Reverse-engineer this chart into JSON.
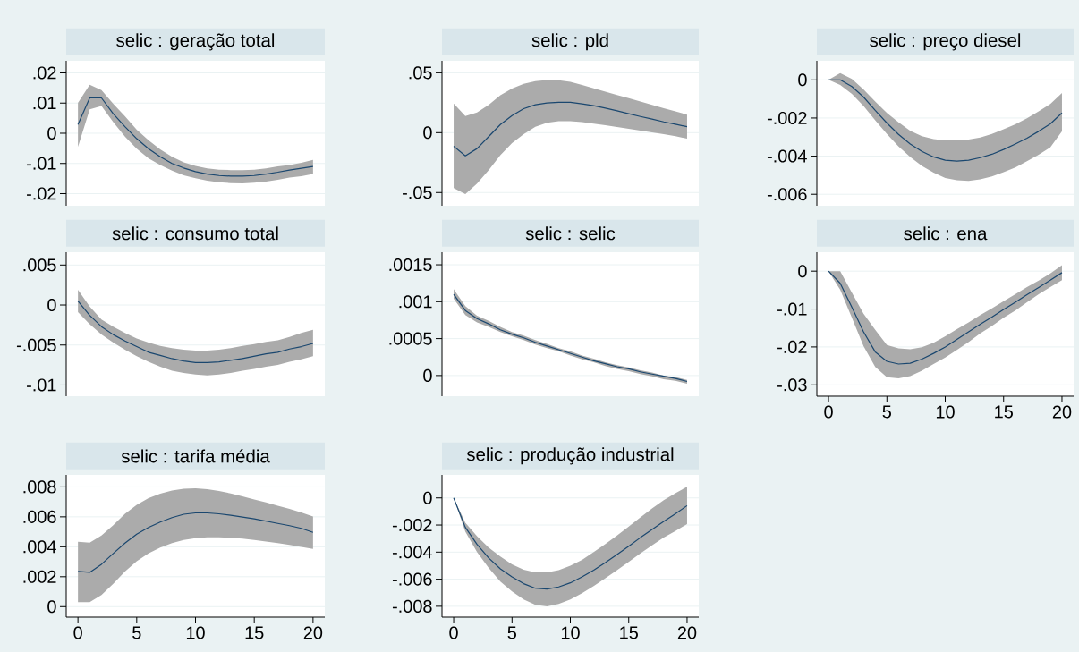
{
  "chart_data": [
    {
      "type": "line",
      "title": "selic : geração total",
      "x": [
        0,
        1,
        2,
        3,
        4,
        5,
        6,
        7,
        8,
        9,
        10,
        11,
        12,
        13,
        14,
        15,
        16,
        17,
        18,
        19,
        20
      ],
      "xlim": [
        -1,
        21
      ],
      "ylim": [
        -0.024,
        0.024
      ],
      "yticks": [
        {
          "value": -0.02,
          "label": "-.02"
        },
        {
          "value": -0.01,
          "label": "-.01"
        },
        0,
        {
          "value": 0.01,
          "label": ".01"
        },
        {
          "value": 0.02,
          "label": ".02"
        }
      ],
      "grid": "y",
      "tick_labels": "y",
      "series": [
        {
          "color": "#1a476f",
          "values": [
            0.0029,
            0.0117,
            0.0117,
            0.0065,
            0.0022,
            -0.0018,
            -0.0051,
            -0.0078,
            -0.01,
            -0.0115,
            -0.0127,
            -0.0135,
            -0.014,
            -0.0142,
            -0.0142,
            -0.014,
            -0.0135,
            -0.0129,
            -0.0122,
            -0.0116,
            -0.011
          ],
          "upper": [
            0.0101,
            0.0161,
            0.0143,
            0.0098,
            0.0056,
            0.0012,
            -0.0023,
            -0.0053,
            -0.0078,
            -0.0096,
            -0.0108,
            -0.0116,
            -0.0121,
            -0.0122,
            -0.0122,
            -0.0121,
            -0.0116,
            -0.011,
            -0.0105,
            -0.0098,
            -0.0088
          ],
          "lower": [
            -0.0045,
            0.0079,
            0.009,
            0.0037,
            -0.0011,
            -0.0051,
            -0.0083,
            -0.0105,
            -0.0124,
            -0.0139,
            -0.0149,
            -0.0157,
            -0.0162,
            -0.0165,
            -0.0166,
            -0.0164,
            -0.016,
            -0.0154,
            -0.0147,
            -0.0142,
            -0.0135
          ]
        }
      ]
    },
    {
      "type": "line",
      "title": "selic : pld",
      "x": [
        0,
        1,
        2,
        3,
        4,
        5,
        6,
        7,
        8,
        9,
        10,
        11,
        12,
        13,
        14,
        15,
        16,
        17,
        18,
        19,
        20
      ],
      "xlim": [
        -1,
        21
      ],
      "ylim": [
        -0.061,
        0.06
      ],
      "yticks": [
        {
          "value": -0.05,
          "label": "-.05"
        },
        0,
        {
          "value": 0.05,
          "label": ".05"
        }
      ],
      "grid": "y",
      "tick_labels": "y",
      "series": [
        {
          "color": "#1a476f",
          "values": [
            -0.0113,
            -0.0193,
            -0.0133,
            -0.0033,
            0.0068,
            0.0143,
            0.02,
            0.0233,
            0.0248,
            0.0253,
            0.0253,
            0.024,
            0.0225,
            0.0205,
            0.0183,
            0.0158,
            0.0135,
            0.0113,
            0.009,
            0.007,
            0.005
          ],
          "upper": [
            0.0243,
            0.0138,
            0.0168,
            0.0233,
            0.0313,
            0.0368,
            0.0408,
            0.043,
            0.044,
            0.0438,
            0.0425,
            0.0398,
            0.037,
            0.0343,
            0.0315,
            0.0288,
            0.026,
            0.0233,
            0.0205,
            0.0178,
            0.015
          ],
          "lower": [
            -0.0463,
            -0.0513,
            -0.0425,
            -0.0313,
            -0.0188,
            -0.0088,
            -0.0013,
            0.005,
            0.0083,
            0.0095,
            0.0095,
            0.0088,
            0.0075,
            0.0063,
            0.0047,
            0.0033,
            0.0017,
            0.0003,
            -0.0013,
            -0.003,
            -0.005
          ]
        }
      ]
    },
    {
      "type": "line",
      "title": "selic : preço diesel",
      "x": [
        0,
        1,
        2,
        3,
        4,
        5,
        6,
        7,
        8,
        9,
        10,
        11,
        12,
        13,
        14,
        15,
        16,
        17,
        18,
        19,
        20
      ],
      "xlim": [
        -1,
        21
      ],
      "ylim": [
        -0.0066,
        0.001
      ],
      "yticks": [
        {
          "value": -0.006,
          "label": "-.006"
        },
        {
          "value": -0.004,
          "label": "-.004"
        },
        {
          "value": -0.002,
          "label": "-.002"
        },
        0
      ],
      "grid": "y",
      "tick_labels": "y",
      "series": [
        {
          "color": "#1a476f",
          "values": [
            0,
            0,
            -0.00035,
            -0.0009,
            -0.0016,
            -0.00226,
            -0.00286,
            -0.00336,
            -0.00375,
            -0.00404,
            -0.00421,
            -0.00426,
            -0.00421,
            -0.00408,
            -0.0039,
            -0.00365,
            -0.00336,
            -0.00306,
            -0.0027,
            -0.00231,
            -0.00173
          ],
          "upper": [
            0,
            0.00036,
            5e-05,
            -0.0005,
            -0.00113,
            -0.00173,
            -0.00223,
            -0.00267,
            -0.00295,
            -0.00311,
            -0.00317,
            -0.00317,
            -0.00313,
            -0.00302,
            -0.00283,
            -0.00259,
            -0.00233,
            -0.00201,
            -0.00165,
            -0.00126,
            -0.00069
          ],
          "lower": [
            0,
            -0.00027,
            -0.00074,
            -0.00137,
            -0.00212,
            -0.00283,
            -0.00349,
            -0.00404,
            -0.00451,
            -0.00487,
            -0.00514,
            -0.00526,
            -0.0053,
            -0.00522,
            -0.00506,
            -0.00484,
            -0.00459,
            -0.00427,
            -0.00393,
            -0.00354,
            -0.0027
          ]
        }
      ]
    },
    {
      "type": "line",
      "title": "selic : consumo total",
      "x": [
        0,
        1,
        2,
        3,
        4,
        5,
        6,
        7,
        8,
        9,
        10,
        11,
        12,
        13,
        14,
        15,
        16,
        17,
        18,
        19,
        20
      ],
      "xlim": [
        -1,
        21
      ],
      "ylim": [
        -0.0114,
        0.0066
      ],
      "yticks": [
        {
          "value": -0.01,
          "label": "-.01"
        },
        {
          "value": -0.005,
          "label": "-.005"
        },
        0,
        {
          "value": 0.005,
          "label": ".005"
        }
      ],
      "grid": "y",
      "tick_labels": "y",
      "series": [
        {
          "color": "#1a476f",
          "values": [
            0.0005,
            -0.0013,
            -0.0027,
            -0.0037,
            -0.0045,
            -0.0052,
            -0.0059,
            -0.0063,
            -0.0067,
            -0.007,
            -0.0072,
            -0.0072,
            -0.0071,
            -0.0069,
            -0.0067,
            -0.0064,
            -0.0061,
            -0.0059,
            -0.0055,
            -0.0052,
            -0.0048
          ],
          "upper": [
            0.0019,
            -0.0002,
            -0.0018,
            -0.0027,
            -0.0035,
            -0.0042,
            -0.0047,
            -0.0051,
            -0.0054,
            -0.0056,
            -0.0057,
            -0.0057,
            -0.0056,
            -0.0054,
            -0.0051,
            -0.0049,
            -0.0046,
            -0.0044,
            -0.004,
            -0.0035,
            -0.0031
          ],
          "lower": [
            -0.0009,
            -0.0024,
            -0.0037,
            -0.0047,
            -0.0056,
            -0.0064,
            -0.0071,
            -0.0077,
            -0.0082,
            -0.0085,
            -0.0087,
            -0.0088,
            -0.0087,
            -0.0085,
            -0.0082,
            -0.008,
            -0.0077,
            -0.0075,
            -0.0071,
            -0.0068,
            -0.0064
          ]
        }
      ]
    },
    {
      "type": "line",
      "title": "selic : selic",
      "x": [
        0,
        1,
        2,
        3,
        4,
        5,
        6,
        7,
        8,
        9,
        10,
        11,
        12,
        13,
        14,
        15,
        16,
        17,
        18,
        19,
        20
      ],
      "xlim": [
        -1,
        21
      ],
      "ylim": [
        -0.00028,
        0.00167
      ],
      "yticks": [
        0,
        {
          "value": 0.0005,
          "label": ".0005"
        },
        {
          "value": 0.001,
          "label": ".001"
        },
        {
          "value": 0.0015,
          "label": ".0015"
        }
      ],
      "grid": "y",
      "tick_labels": "y",
      "series": [
        {
          "color": "#1a476f",
          "values": [
            0.0011,
            0.00088,
            0.00077,
            0.0007,
            0.00062,
            0.00056,
            0.00051,
            0.00045,
            0.0004,
            0.00035,
            0.0003,
            0.00025,
            0.0002,
            0.00016,
            0.00012,
            9e-05,
            5e-05,
            2e-05,
            -1e-05,
            -4e-05,
            -8e-05
          ],
          "upper": [
            0.00117,
            0.00094,
            0.00081,
            0.00074,
            0.00066,
            0.00059,
            0.00054,
            0.00048,
            0.00043,
            0.00037,
            0.00033,
            0.00027,
            0.00023,
            0.00018,
            0.00014,
            0.00011,
            7e-05,
            4e-05,
            0,
            -2e-05,
            -6e-05
          ],
          "lower": [
            0.00104,
            0.00082,
            0.00072,
            0.00066,
            0.00059,
            0.00053,
            0.00048,
            0.00042,
            0.00037,
            0.00033,
            0.00027,
            0.00022,
            0.00018,
            0.00013,
            9e-05,
            6e-05,
            2e-05,
            -1e-05,
            -5e-05,
            -7e-05,
            -0.00011
          ]
        }
      ]
    },
    {
      "type": "line",
      "title": "selic : ena",
      "x": [
        0,
        1,
        2,
        3,
        4,
        5,
        6,
        7,
        8,
        9,
        10,
        11,
        12,
        13,
        14,
        15,
        16,
        17,
        18,
        19,
        20
      ],
      "xlim": [
        -1,
        21
      ],
      "xticks": [
        0,
        5,
        10,
        15,
        20
      ],
      "ylim": [
        -0.033,
        0.005
      ],
      "yticks": [
        {
          "value": -0.03,
          "label": "-.03"
        },
        {
          "value": -0.02,
          "label": "-.02"
        },
        {
          "value": -0.01,
          "label": "-.01"
        },
        0
      ],
      "grid": "y",
      "series": [
        {
          "color": "#1a476f",
          "values": [
            0,
            -0.0032,
            -0.0095,
            -0.016,
            -0.0213,
            -0.0238,
            -0.0245,
            -0.0243,
            -0.0232,
            -0.0217,
            -0.02,
            -0.018,
            -0.016,
            -0.014,
            -0.0121,
            -0.0101,
            -0.0082,
            -0.0062,
            -0.0043,
            -0.0024,
            -0.0004
          ],
          "upper": [
            0,
            0,
            -0.0057,
            -0.0112,
            -0.0155,
            -0.0195,
            -0.0204,
            -0.0206,
            -0.0201,
            -0.0189,
            -0.0172,
            -0.0153,
            -0.0135,
            -0.0116,
            -0.0098,
            -0.0079,
            -0.0061,
            -0.0042,
            -0.0025,
            -0.0006,
            0.0016
          ],
          "lower": [
            0,
            -0.0049,
            -0.0123,
            -0.0198,
            -0.0253,
            -0.028,
            -0.0283,
            -0.0277,
            -0.0263,
            -0.0245,
            -0.0228,
            -0.0208,
            -0.0187,
            -0.0164,
            -0.0145,
            -0.0123,
            -0.0104,
            -0.0082,
            -0.0061,
            -0.0042,
            -0.0024
          ]
        }
      ]
    },
    {
      "type": "line",
      "title": "selic : tarifa média",
      "x": [
        0,
        1,
        2,
        3,
        4,
        5,
        6,
        7,
        8,
        9,
        10,
        11,
        12,
        13,
        14,
        15,
        16,
        17,
        18,
        19,
        20
      ],
      "xlim": [
        -1,
        21
      ],
      "xticks": [
        0,
        5,
        10,
        15,
        20
      ],
      "ylim": [
        -0.0007,
        0.0088
      ],
      "yticks": [
        0,
        {
          "value": 0.002,
          "label": ".002"
        },
        {
          "value": 0.004,
          "label": ".004"
        },
        {
          "value": 0.006,
          "label": ".006"
        },
        {
          "value": 0.008,
          "label": ".008"
        }
      ],
      "grid": "y",
      "series": [
        {
          "color": "#1a476f",
          "values": [
            0.00235,
            0.00229,
            0.00283,
            0.00355,
            0.00424,
            0.00484,
            0.00529,
            0.00565,
            0.00595,
            0.00617,
            0.00626,
            0.00626,
            0.0062,
            0.0061,
            0.00598,
            0.00586,
            0.00571,
            0.00556,
            0.00541,
            0.00523,
            0.00496
          ],
          "upper": [
            0.00433,
            0.00427,
            0.00475,
            0.00544,
            0.0062,
            0.0068,
            0.00725,
            0.00755,
            0.00776,
            0.00788,
            0.00791,
            0.00785,
            0.00773,
            0.00756,
            0.00737,
            0.00716,
            0.00696,
            0.00674,
            0.00653,
            0.00629,
            0.00602
          ],
          "lower": [
            0.0003,
            0.0003,
            0.00078,
            0.00153,
            0.00235,
            0.00304,
            0.00355,
            0.00394,
            0.00424,
            0.00445,
            0.00457,
            0.00463,
            0.00463,
            0.0046,
            0.00454,
            0.00445,
            0.00435,
            0.00424,
            0.00412,
            0.00399,
            0.00385
          ]
        }
      ]
    },
    {
      "type": "line",
      "title": "selic : produção industrial",
      "x": [
        0,
        1,
        2,
        3,
        4,
        5,
        6,
        7,
        8,
        9,
        10,
        11,
        12,
        13,
        14,
        15,
        16,
        17,
        18,
        19,
        20
      ],
      "xlim": [
        -1,
        21
      ],
      "xticks": [
        0,
        5,
        10,
        15,
        20
      ],
      "ylim": [
        -0.0088,
        0.0017
      ],
      "yticks": [
        {
          "value": -0.008,
          "label": "-.008"
        },
        {
          "value": -0.006,
          "label": "-.006"
        },
        {
          "value": -0.004,
          "label": "-.004"
        },
        {
          "value": -0.002,
          "label": "-.002"
        },
        0
      ],
      "grid": "y",
      "series": [
        {
          "color": "#1a476f",
          "values": [
            0,
            -0.00217,
            -0.00343,
            -0.00443,
            -0.00523,
            -0.00583,
            -0.00633,
            -0.00667,
            -0.00673,
            -0.00657,
            -0.00627,
            -0.00583,
            -0.00533,
            -0.00477,
            -0.00417,
            -0.00357,
            -0.00293,
            -0.00233,
            -0.00173,
            -0.00117,
            -0.00057
          ],
          "upper": [
            0,
            -0.00183,
            -0.00283,
            -0.00367,
            -0.00433,
            -0.0049,
            -0.0053,
            -0.0055,
            -0.0055,
            -0.00533,
            -0.005,
            -0.00457,
            -0.004,
            -0.0034,
            -0.00277,
            -0.00211,
            -0.00143,
            -0.00077,
            -0.00017,
            0.00034,
            0.00083
          ],
          "lower": [
            0,
            -0.0025,
            -0.004,
            -0.00517,
            -0.00617,
            -0.0069,
            -0.0075,
            -0.0079,
            -0.008,
            -0.00783,
            -0.0075,
            -0.00703,
            -0.0065,
            -0.00593,
            -0.00534,
            -0.00473,
            -0.0041,
            -0.0035,
            -0.00293,
            -0.00244,
            -0.00193
          ]
        }
      ]
    }
  ]
}
